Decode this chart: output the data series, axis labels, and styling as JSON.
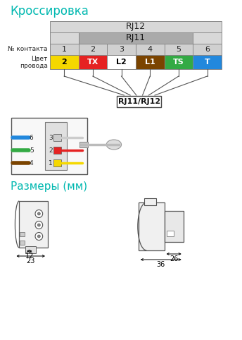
{
  "title1": "Кроссировка",
  "title2": "Размеры (мм)",
  "title_color": "#00b8b0",
  "bg_color": "#ffffff",
  "rj12_label": "RJ12",
  "rj11_label": "RJ11",
  "rj11_rj12_label": "RJ11/RJ12",
  "contact_label": "№ контакта",
  "wire_label": "Цвет\nпровода",
  "contacts": [
    "1",
    "2",
    "3",
    "4",
    "5",
    "6"
  ],
  "wire_labels": [
    "2",
    "TX",
    "L2",
    "L1",
    "TS",
    "T"
  ],
  "wire_colors": [
    "#f5d800",
    "#e52222",
    "#ffffff",
    "#7b4400",
    "#33aa44",
    "#2288dd"
  ],
  "wire_text_colors": [
    "#000000",
    "#ffffff",
    "#000000",
    "#ffffff",
    "#ffffff",
    "#ffffff"
  ],
  "rj12_bg": "#d8d8d8",
  "rj11_bg": "#aaaaaa",
  "contact_row_bg": "#d0d0d0",
  "dim1_label1": "12",
  "dim1_label2": "23",
  "dim2_label1": "26",
  "dim2_label2": "36",
  "line_color": "#555555",
  "dark_color": "#333333"
}
